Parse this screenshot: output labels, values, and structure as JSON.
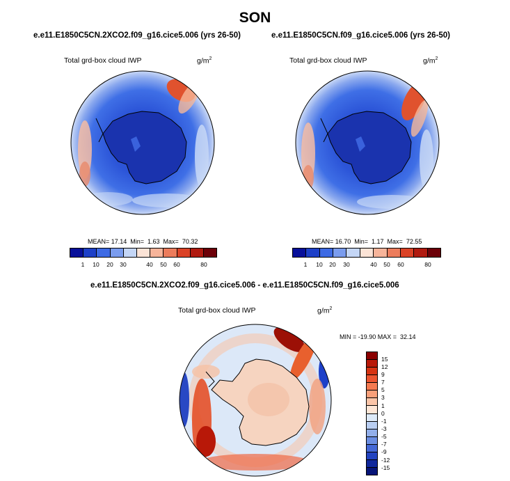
{
  "season": "SON",
  "panels": [
    {
      "case": "e.e11.E1850C5CN.2XCO2.f09_g16.cice5.006 (yrs 26-50)",
      "variable": "Total grd-box cloud IWP",
      "units_base": "g/m",
      "units_exp": "2",
      "stats": "MEAN= 17.14  Min=  1.63  Max=  70.32"
    },
    {
      "case": "e.e11.E1850C5CN.f09_g16.cice5.006 (yrs 26-50)",
      "variable": "Total grd-box cloud IWP",
      "units_base": "g/m",
      "units_exp": "2",
      "stats": "MEAN= 16.70  Min=  1.17  Max=  72.55"
    }
  ],
  "diff": {
    "case": "e.e11.E1850C5CN.2XCO2.f09_g16.cice5.006 - e.e11.E1850C5CN.f09_g16.cice5.006",
    "variable": "Total grd-box cloud IWP",
    "units_base": "g/m",
    "units_exp": "2",
    "stats": "MIN = -19.90 MAX =  32.14"
  },
  "chart_data": [
    {
      "type": "heatmap",
      "projection": "polar stereographic (south pole)",
      "colorbar": {
        "orientation": "horizontal",
        "levels": [
          "1",
          "10",
          "20",
          "30",
          "40",
          "50",
          "60",
          "80"
        ],
        "colors": [
          "#08109a",
          "#1d40c8",
          "#3d6ae4",
          "#7a9cee",
          "#c4d6f6",
          "#fbe3d6",
          "#f7b49a",
          "#ec7c5c",
          "#da4226",
          "#b01a10",
          "#6c0008"
        ]
      },
      "mean": 17.14,
      "min": 1.63,
      "max": 70.32
    },
    {
      "type": "heatmap",
      "projection": "polar stereographic (south pole)",
      "colorbar": {
        "orientation": "horizontal",
        "levels": [
          "1",
          "10",
          "20",
          "30",
          "40",
          "50",
          "60",
          "80"
        ],
        "colors": [
          "#08109a",
          "#1d40c8",
          "#3d6ae4",
          "#7a9cee",
          "#c4d6f6",
          "#fbe3d6",
          "#f7b49a",
          "#ec7c5c",
          "#da4226",
          "#b01a10",
          "#6c0008"
        ]
      },
      "mean": 16.7,
      "min": 1.17,
      "max": 72.55
    },
    {
      "type": "heatmap",
      "projection": "polar stereographic (south pole)",
      "colorbar": {
        "orientation": "vertical",
        "levels": [
          "15",
          "12",
          "9",
          "7",
          "5",
          "3",
          "1",
          "0",
          "-1",
          "-3",
          "-5",
          "-7",
          "-9",
          "-12",
          "-15"
        ],
        "colors": [
          "#8b0000",
          "#b81808",
          "#d63312",
          "#ec5530",
          "#f57a50",
          "#f9a07a",
          "#fbc5a8",
          "#fde6d6",
          "#ddeaf8",
          "#b9cef2",
          "#92afea",
          "#6b8ee2",
          "#4468d6",
          "#2243c0",
          "#0f279c",
          "#061478"
        ]
      },
      "min": -19.9,
      "max": 32.14
    }
  ]
}
